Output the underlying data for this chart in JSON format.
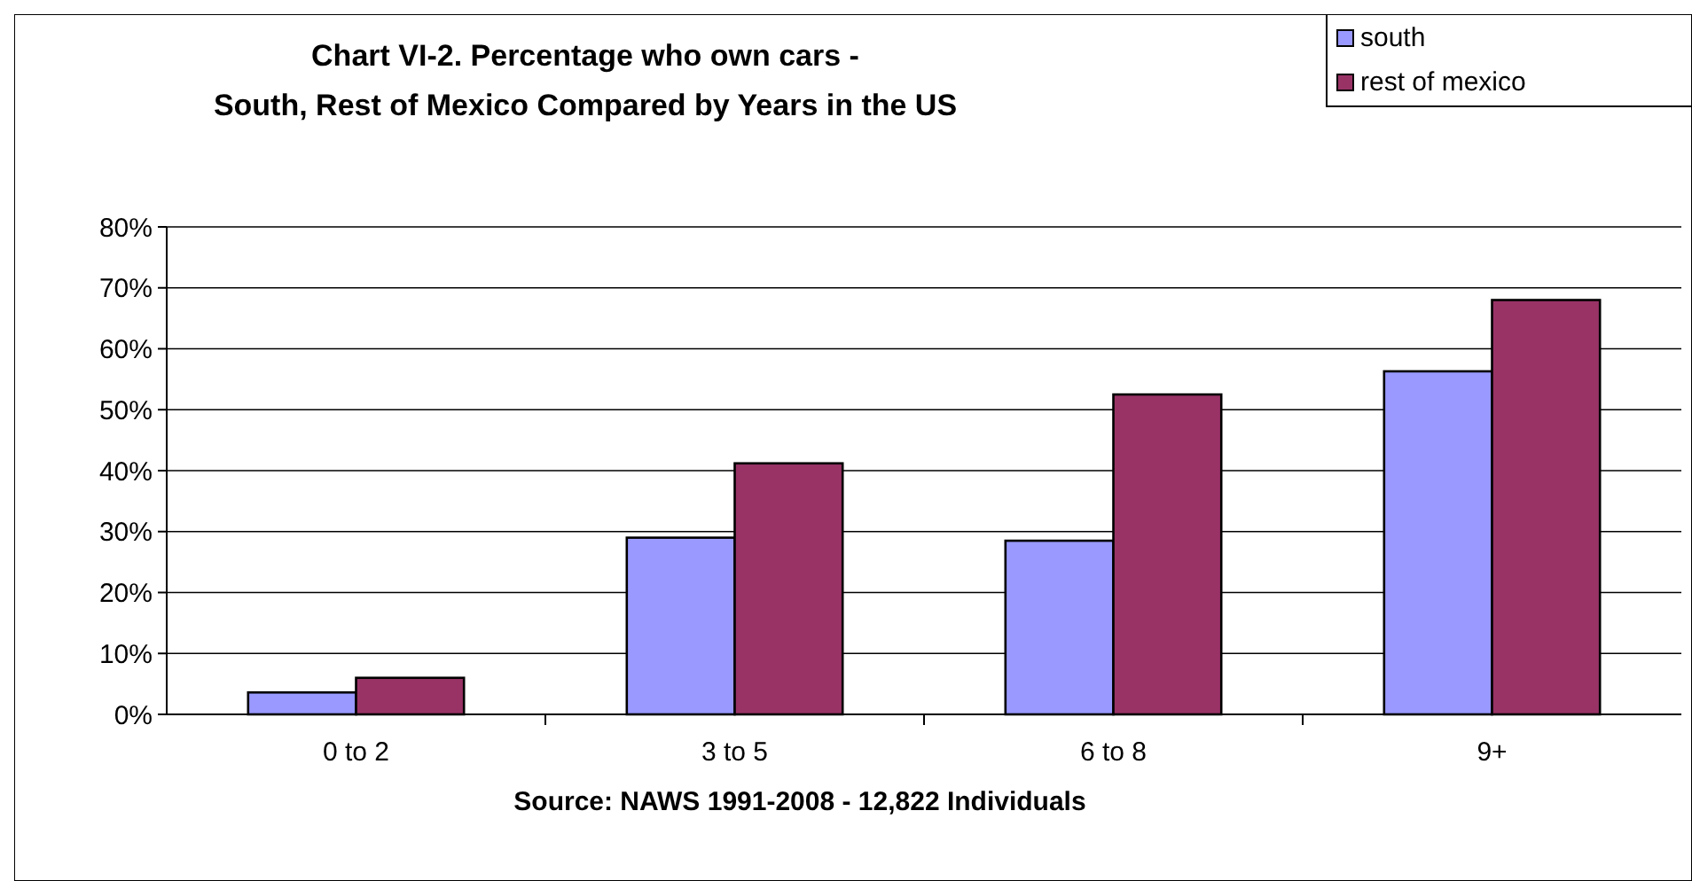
{
  "chart_data": {
    "type": "bar",
    "title": "Chart VI-2.  Percentage who own cars -\nSouth, Rest of Mexico Compared by Years in the US",
    "categories": [
      "0 to 2",
      "3 to 5",
      "6 to 8",
      "9+"
    ],
    "series": [
      {
        "name": "south",
        "color": "#9999ff",
        "values": [
          3.6,
          29,
          28.5,
          56.3
        ]
      },
      {
        "name": "rest of mexico",
        "color": "#993366",
        "values": [
          6,
          41.2,
          52.5,
          68
        ]
      }
    ],
    "ylim": [
      0,
      80
    ],
    "yticks": [
      {
        "value": 0,
        "label": "0%"
      },
      {
        "value": 10,
        "label": "10%"
      },
      {
        "value": 20,
        "label": "20%"
      },
      {
        "value": 30,
        "label": "30%"
      },
      {
        "value": 40,
        "label": "40%"
      },
      {
        "value": 50,
        "label": "50%"
      },
      {
        "value": 60,
        "label": "60%"
      },
      {
        "value": 70,
        "label": "70%"
      },
      {
        "value": 80,
        "label": "80%"
      }
    ],
    "grid": "y",
    "legend": "top right",
    "annotations": [
      "Source: NAWS 1991-2008 - 12,822 Individuals"
    ]
  }
}
